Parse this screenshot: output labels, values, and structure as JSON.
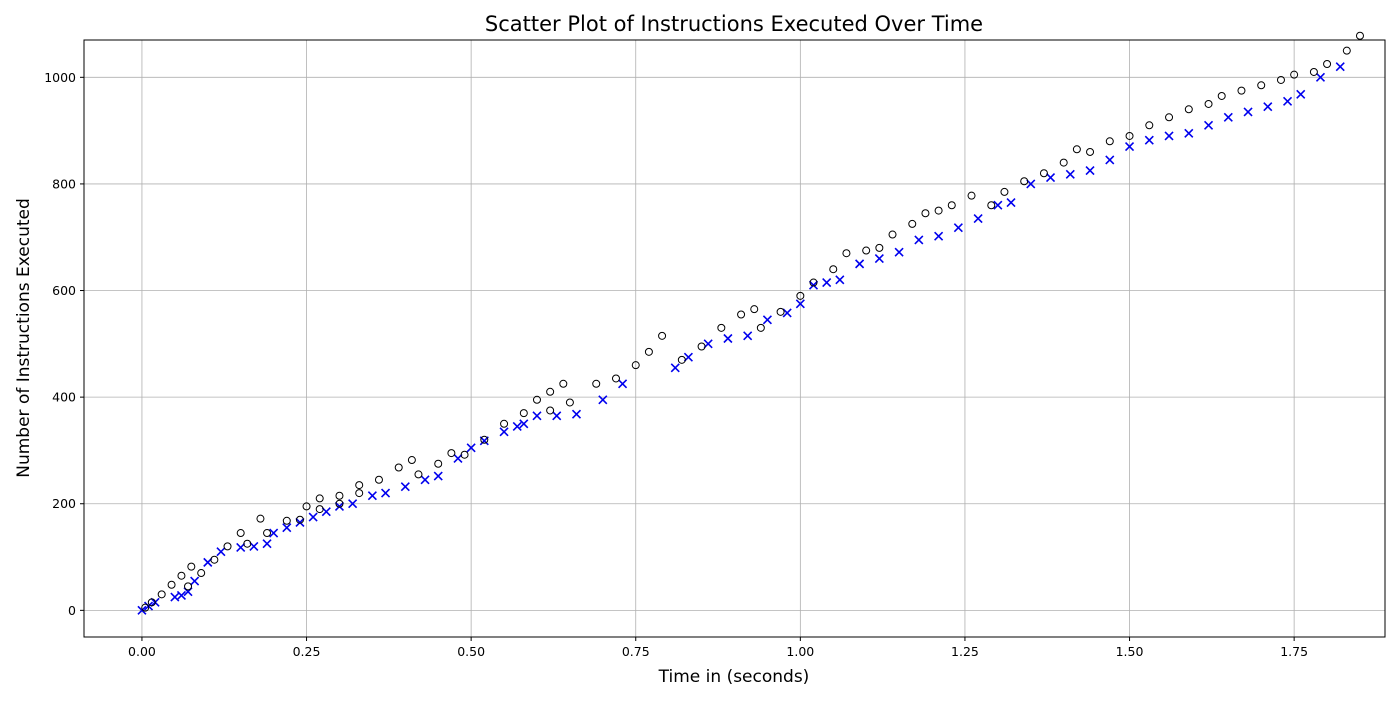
{
  "chart_data": {
    "type": "scatter",
    "title": "Scatter Plot of Instructions Executed Over Time",
    "xlabel": "Time in (seconds)",
    "ylabel": "Number of Instructions Executed",
    "xlim": [
      -0.088,
      1.888
    ],
    "ylim": [
      -50,
      1070
    ],
    "x_ticks": [
      0.0,
      0.25,
      0.5,
      0.75,
      1.0,
      1.25,
      1.5,
      1.75
    ],
    "x_tick_labels": [
      "0.00",
      "0.25",
      "0.50",
      "0.75",
      "1.00",
      "1.25",
      "1.50",
      "1.75"
    ],
    "y_ticks": [
      0,
      200,
      400,
      600,
      800,
      1000
    ],
    "y_tick_labels": [
      "0",
      "200",
      "400",
      "600",
      "800",
      "1000"
    ],
    "grid": true,
    "legend": "none",
    "colors": {
      "series_a": "#0000ee",
      "series_b": "#000000",
      "grid": "#b0b0b0"
    },
    "series": [
      {
        "marker": "x",
        "color": "#0000ee",
        "points": [
          [
            0.0,
            0
          ],
          [
            0.01,
            8
          ],
          [
            0.02,
            15
          ],
          [
            0.05,
            25
          ],
          [
            0.06,
            28
          ],
          [
            0.07,
            35
          ],
          [
            0.08,
            55
          ],
          [
            0.1,
            90
          ],
          [
            0.12,
            110
          ],
          [
            0.15,
            118
          ],
          [
            0.17,
            120
          ],
          [
            0.19,
            125
          ],
          [
            0.2,
            145
          ],
          [
            0.22,
            155
          ],
          [
            0.24,
            165
          ],
          [
            0.26,
            175
          ],
          [
            0.28,
            185
          ],
          [
            0.3,
            195
          ],
          [
            0.32,
            200
          ],
          [
            0.35,
            215
          ],
          [
            0.37,
            220
          ],
          [
            0.4,
            232
          ],
          [
            0.43,
            245
          ],
          [
            0.45,
            252
          ],
          [
            0.48,
            285
          ],
          [
            0.5,
            305
          ],
          [
            0.52,
            318
          ],
          [
            0.55,
            335
          ],
          [
            0.57,
            345
          ],
          [
            0.58,
            350
          ],
          [
            0.6,
            365
          ],
          [
            0.63,
            365
          ],
          [
            0.66,
            368
          ],
          [
            0.7,
            395
          ],
          [
            0.73,
            425
          ],
          [
            0.81,
            455
          ],
          [
            0.83,
            475
          ],
          [
            0.86,
            500
          ],
          [
            0.89,
            510
          ],
          [
            0.92,
            515
          ],
          [
            0.95,
            545
          ],
          [
            0.98,
            558
          ],
          [
            1.0,
            575
          ],
          [
            1.02,
            610
          ],
          [
            1.04,
            615
          ],
          [
            1.06,
            620
          ],
          [
            1.09,
            650
          ],
          [
            1.12,
            660
          ],
          [
            1.15,
            672
          ],
          [
            1.18,
            695
          ],
          [
            1.21,
            702
          ],
          [
            1.24,
            718
          ],
          [
            1.27,
            735
          ],
          [
            1.3,
            760
          ],
          [
            1.32,
            765
          ],
          [
            1.35,
            800
          ],
          [
            1.38,
            812
          ],
          [
            1.41,
            818
          ],
          [
            1.44,
            825
          ],
          [
            1.47,
            845
          ],
          [
            1.5,
            870
          ],
          [
            1.53,
            882
          ],
          [
            1.56,
            890
          ],
          [
            1.59,
            895
          ],
          [
            1.62,
            910
          ],
          [
            1.65,
            925
          ],
          [
            1.68,
            935
          ],
          [
            1.71,
            945
          ],
          [
            1.74,
            955
          ],
          [
            1.76,
            968
          ],
          [
            1.79,
            1000
          ],
          [
            1.82,
            1020
          ]
        ]
      },
      {
        "marker": "o",
        "color": "#000000",
        "points": [
          [
            0.005,
            5
          ],
          [
            0.015,
            15
          ],
          [
            0.03,
            30
          ],
          [
            0.045,
            48
          ],
          [
            0.06,
            65
          ],
          [
            0.075,
            82
          ],
          [
            0.07,
            45
          ],
          [
            0.09,
            70
          ],
          [
            0.11,
            95
          ],
          [
            0.13,
            120
          ],
          [
            0.15,
            145
          ],
          [
            0.18,
            172
          ],
          [
            0.16,
            125
          ],
          [
            0.19,
            145
          ],
          [
            0.22,
            168
          ],
          [
            0.25,
            195
          ],
          [
            0.27,
            210
          ],
          [
            0.24,
            170
          ],
          [
            0.27,
            190
          ],
          [
            0.3,
            215
          ],
          [
            0.33,
            235
          ],
          [
            0.3,
            200
          ],
          [
            0.33,
            220
          ],
          [
            0.36,
            245
          ],
          [
            0.39,
            268
          ],
          [
            0.41,
            282
          ],
          [
            0.42,
            255
          ],
          [
            0.45,
            275
          ],
          [
            0.47,
            295
          ],
          [
            0.49,
            292
          ],
          [
            0.52,
            320
          ],
          [
            0.55,
            350
          ],
          [
            0.58,
            370
          ],
          [
            0.6,
            395
          ],
          [
            0.62,
            410
          ],
          [
            0.64,
            425
          ],
          [
            0.62,
            375
          ],
          [
            0.65,
            390
          ],
          [
            0.69,
            425
          ],
          [
            0.72,
            435
          ],
          [
            0.75,
            460
          ],
          [
            0.77,
            485
          ],
          [
            0.79,
            515
          ],
          [
            0.82,
            470
          ],
          [
            0.85,
            495
          ],
          [
            0.88,
            530
          ],
          [
            0.91,
            555
          ],
          [
            0.93,
            565
          ],
          [
            0.94,
            530
          ],
          [
            0.97,
            560
          ],
          [
            1.0,
            590
          ],
          [
            1.02,
            615
          ],
          [
            1.05,
            640
          ],
          [
            1.07,
            670
          ],
          [
            1.1,
            675
          ],
          [
            1.12,
            680
          ],
          [
            1.14,
            705
          ],
          [
            1.17,
            725
          ],
          [
            1.19,
            745
          ],
          [
            1.21,
            750
          ],
          [
            1.23,
            760
          ],
          [
            1.26,
            778
          ],
          [
            1.29,
            760
          ],
          [
            1.31,
            785
          ],
          [
            1.34,
            805
          ],
          [
            1.37,
            820
          ],
          [
            1.4,
            840
          ],
          [
            1.42,
            865
          ],
          [
            1.44,
            860
          ],
          [
            1.47,
            880
          ],
          [
            1.5,
            890
          ],
          [
            1.53,
            910
          ],
          [
            1.56,
            925
          ],
          [
            1.59,
            940
          ],
          [
            1.62,
            950
          ],
          [
            1.64,
            965
          ],
          [
            1.67,
            975
          ],
          [
            1.7,
            985
          ],
          [
            1.73,
            995
          ],
          [
            1.75,
            1005
          ],
          [
            1.78,
            1010
          ],
          [
            1.8,
            1025
          ],
          [
            1.83,
            1050
          ],
          [
            1.85,
            1078
          ]
        ]
      }
    ]
  }
}
